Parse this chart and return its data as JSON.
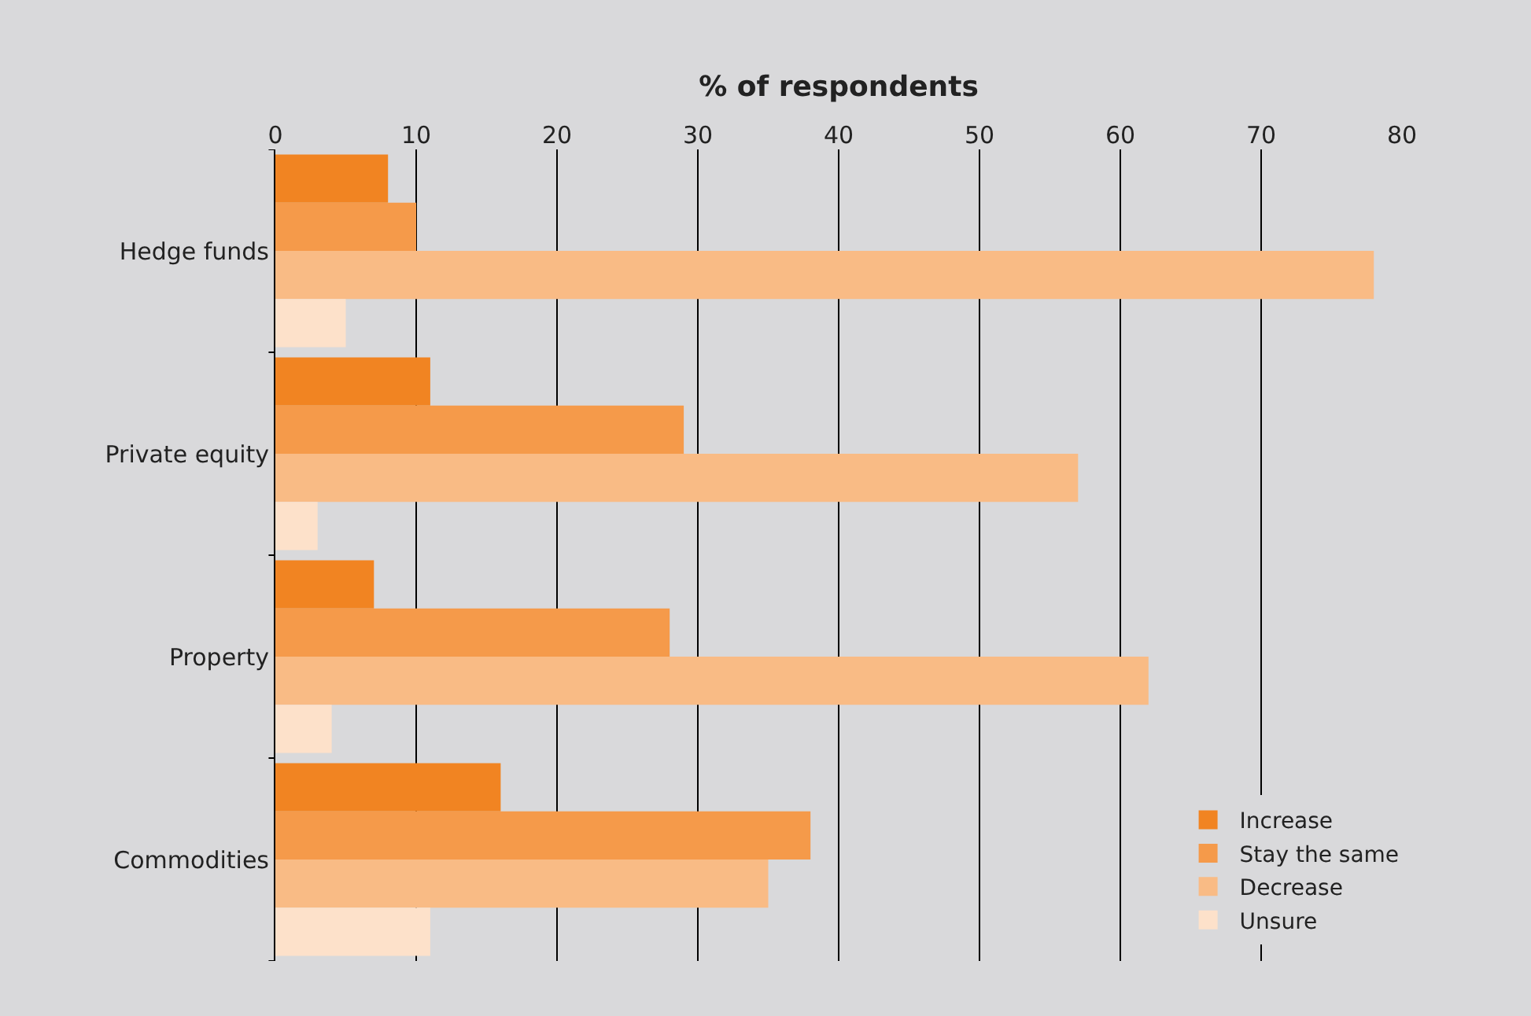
{
  "chart_data": {
    "type": "bar",
    "orientation": "horizontal",
    "xlabel": "% of respondents",
    "categories": [
      "Hedge funds",
      "Private equity",
      "Property",
      "Commodities"
    ],
    "series": [
      {
        "name": "Increase",
        "color": "#f18422",
        "values": [
          8,
          11,
          7,
          16
        ]
      },
      {
        "name": "Stay the same",
        "color": "#f59a4a",
        "values": [
          10,
          29,
          28,
          38
        ]
      },
      {
        "name": "Decrease",
        "color": "#f9bb85",
        "values": [
          78,
          57,
          62,
          35
        ]
      },
      {
        "name": "Unsure",
        "color": "#fde1ca",
        "values": [
          5,
          3,
          4,
          11
        ]
      }
    ],
    "xlim": [
      0,
      80
    ],
    "xticks": [
      0,
      10,
      20,
      30,
      40,
      50,
      60,
      70,
      80
    ],
    "grid": "x",
    "legend": "bottom right"
  }
}
